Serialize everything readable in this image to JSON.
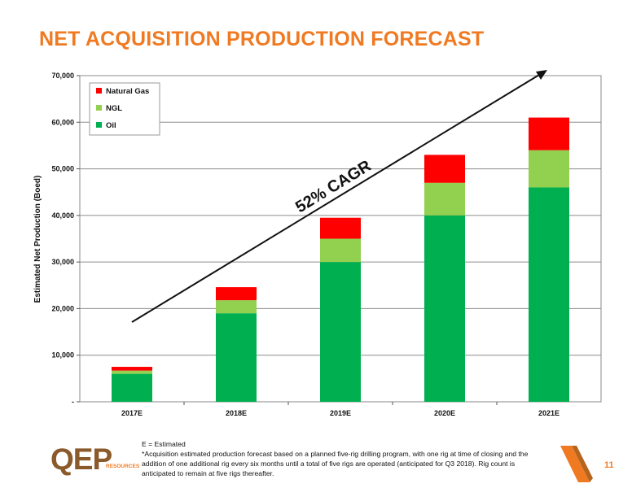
{
  "title": "NET ACQUISITION PRODUCTION FORECAST",
  "chart_data": {
    "type": "bar",
    "stacked": true,
    "categories": [
      "2017E",
      "2018E",
      "2019E",
      "2020E",
      "2021E"
    ],
    "series": [
      {
        "name": "Oil",
        "color": "#00b050",
        "values": [
          6000,
          19000,
          30000,
          40000,
          46000
        ]
      },
      {
        "name": "NGL",
        "color": "#92d050",
        "values": [
          700,
          2800,
          5000,
          7000,
          8000
        ]
      },
      {
        "name": "Natural Gas",
        "color": "#ff0000",
        "values": [
          800,
          2800,
          4500,
          6000,
          7000
        ]
      }
    ],
    "ylabel": "Estimated Net Production (Boed)",
    "ylim": [
      0,
      70000
    ],
    "yticks": [
      "-",
      "10,000",
      "20,000",
      "30,000",
      "40,000",
      "50,000",
      "60,000",
      "70,000"
    ],
    "grid": true,
    "legend": "top-left",
    "annotation": "52% CAGR"
  },
  "footnotes": {
    "line1": "E = Estimated",
    "line2": "*Acquisition estimated production forecast based on a planned five-rig drilling program, with one rig at time of closing and the addition of one additional rig every six months until a total of five rigs are operated (anticipated for Q3 2018). Rig count is anticipated to remain at five rigs thereafter."
  },
  "logo": {
    "letters": "QEP",
    "sub": "RESOURCES"
  },
  "page_number": "11"
}
